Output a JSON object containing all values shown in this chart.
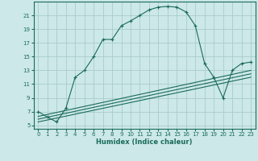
{
  "xlabel": "Humidex (Indice chaleur)",
  "bg_color": "#cce8e8",
  "grid_color": "#aacccc",
  "line_color": "#1a6b5a",
  "xlim": [
    -0.5,
    23.5
  ],
  "ylim": [
    4.5,
    23.0
  ],
  "xticks": [
    0,
    1,
    2,
    3,
    4,
    5,
    6,
    7,
    8,
    9,
    10,
    11,
    12,
    13,
    14,
    15,
    16,
    17,
    18,
    19,
    20,
    21,
    22,
    23
  ],
  "yticks": [
    5,
    7,
    9,
    11,
    13,
    15,
    17,
    19,
    21
  ],
  "main_x": [
    0,
    1,
    2,
    3,
    4,
    5,
    6,
    7,
    8,
    9,
    10,
    11,
    12,
    13,
    14,
    15,
    16,
    17,
    18,
    19,
    20,
    21,
    22,
    23
  ],
  "main_y": [
    7.0,
    6.2,
    5.5,
    7.5,
    12.0,
    13.0,
    15.0,
    17.5,
    17.5,
    19.5,
    20.2,
    21.0,
    21.8,
    22.2,
    22.3,
    22.2,
    21.5,
    19.5,
    14.0,
    12.0,
    9.0,
    13.0,
    14.0,
    14.2
  ],
  "line1_x": [
    0,
    23
  ],
  "line1_y": [
    5.5,
    12.0
  ],
  "line2_x": [
    0,
    23
  ],
  "line2_y": [
    5.9,
    12.5
  ],
  "line3_x": [
    0,
    23
  ],
  "line3_y": [
    6.3,
    13.0
  ],
  "xlabel_fontsize": 6,
  "tick_fontsize": 5,
  "marker": "+",
  "markersize": 3.0,
  "linewidth": 0.8
}
